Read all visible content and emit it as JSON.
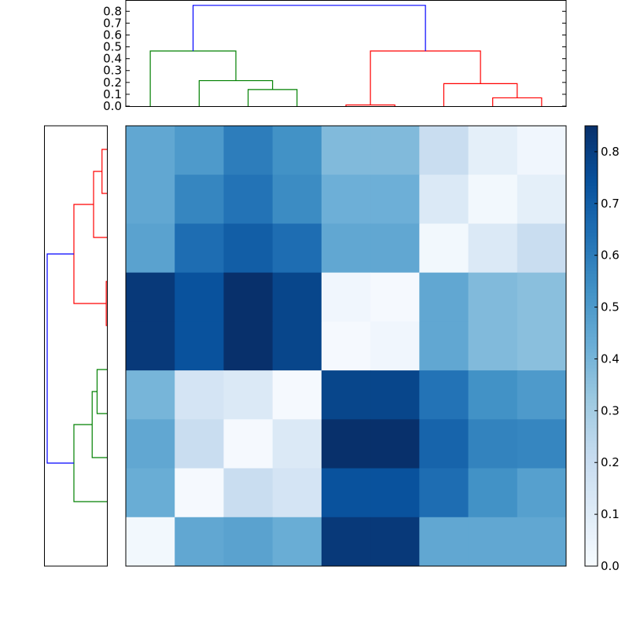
{
  "chart_data": {
    "type": "heatmap",
    "colormap": "Blues",
    "vmin": 0.0,
    "vmax": 0.85,
    "values": [
      [
        0.45,
        0.5,
        0.6,
        0.53,
        0.38,
        0.38,
        0.2,
        0.08,
        0.03
      ],
      [
        0.45,
        0.57,
        0.63,
        0.55,
        0.42,
        0.42,
        0.12,
        0.02,
        0.08
      ],
      [
        0.47,
        0.65,
        0.7,
        0.65,
        0.45,
        0.45,
        0.02,
        0.12,
        0.2
      ],
      [
        0.82,
        0.74,
        0.85,
        0.78,
        0.03,
        0.01,
        0.45,
        0.38,
        0.36
      ],
      [
        0.82,
        0.74,
        0.85,
        0.78,
        0.01,
        0.03,
        0.45,
        0.38,
        0.36
      ],
      [
        0.4,
        0.15,
        0.12,
        0.01,
        0.78,
        0.78,
        0.63,
        0.53,
        0.5
      ],
      [
        0.45,
        0.2,
        0.01,
        0.12,
        0.85,
        0.85,
        0.68,
        0.58,
        0.57
      ],
      [
        0.43,
        0.01,
        0.2,
        0.15,
        0.74,
        0.74,
        0.65,
        0.53,
        0.48
      ],
      [
        0.02,
        0.45,
        0.47,
        0.43,
        0.82,
        0.82,
        0.45,
        0.45,
        0.45
      ]
    ],
    "colorbar": {
      "ticks": [
        "0.0",
        "0.1",
        "0.2",
        "0.3",
        "0.4",
        "0.5",
        "0.6",
        "0.7",
        "0.8"
      ]
    },
    "top_dendrogram": {
      "orientation": "top",
      "ylim": [
        0,
        0.895
      ],
      "yticks": [
        "0.0",
        "0.1",
        "0.2",
        "0.3",
        "0.4",
        "0.5",
        "0.6",
        "0.7",
        "0.8"
      ],
      "merges": [
        {
          "a": 2,
          "b": 3,
          "height": 0.14,
          "color": "#008000"
        },
        {
          "a": 1,
          "b": 9,
          "height": 0.215,
          "color": "#008000"
        },
        {
          "a": 0,
          "b": 10,
          "height": 0.465,
          "color": "#008000"
        },
        {
          "a": 4,
          "b": 5,
          "height": 0.01,
          "color": "#ff0000"
        },
        {
          "a": 7,
          "b": 8,
          "height": 0.07,
          "color": "#ff0000"
        },
        {
          "a": 6,
          "b": 13,
          "height": 0.19,
          "color": "#ff0000"
        },
        {
          "a": 12,
          "b": 14,
          "height": 0.465,
          "color": "#ff0000"
        },
        {
          "a": 11,
          "b": 15,
          "height": 0.85,
          "color": "#0000ff"
        }
      ]
    },
    "left_dendrogram": {
      "orientation": "left",
      "xlim": [
        0,
        0.895
      ],
      "merges": [
        {
          "a": 0,
          "b": 1,
          "height": 0.07,
          "color": "#ff0000"
        },
        {
          "a": 2,
          "b": 9,
          "height": 0.19,
          "color": "#ff0000"
        },
        {
          "a": 3,
          "b": 4,
          "height": 0.01,
          "color": "#ff0000"
        },
        {
          "a": 10,
          "b": 11,
          "height": 0.47,
          "color": "#ff0000"
        },
        {
          "a": 5,
          "b": 6,
          "height": 0.14,
          "color": "#008000"
        },
        {
          "a": 7,
          "b": 13,
          "height": 0.21,
          "color": "#008000"
        },
        {
          "a": 8,
          "b": 14,
          "height": 0.47,
          "color": "#008000"
        },
        {
          "a": 12,
          "b": 15,
          "height": 0.85,
          "color": "#0000ff"
        }
      ]
    }
  }
}
